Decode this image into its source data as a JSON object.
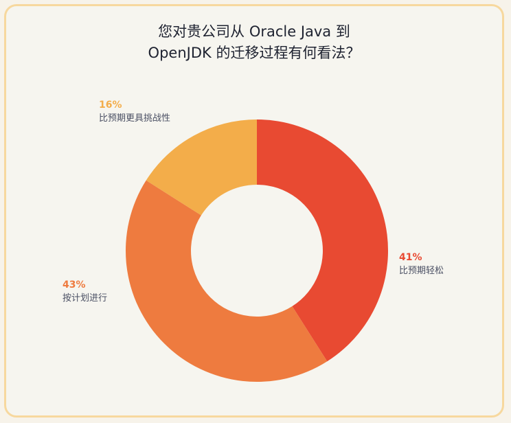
{
  "chart_data": {
    "type": "pie",
    "title_line1": "您对贵公司从 Oracle Java 到",
    "title_line2": "OpenJDK 的迁移过程有何看法？",
    "slices": [
      {
        "label": "比预期轻松",
        "value": 41,
        "display": "41%",
        "color": "#e84a32"
      },
      {
        "label": "按计划进行",
        "value": 43,
        "display": "43%",
        "color": "#ee7b3f"
      },
      {
        "label": "比预期更具挑战性",
        "value": 16,
        "display": "16%",
        "color": "#f3ad4a"
      }
    ]
  }
}
